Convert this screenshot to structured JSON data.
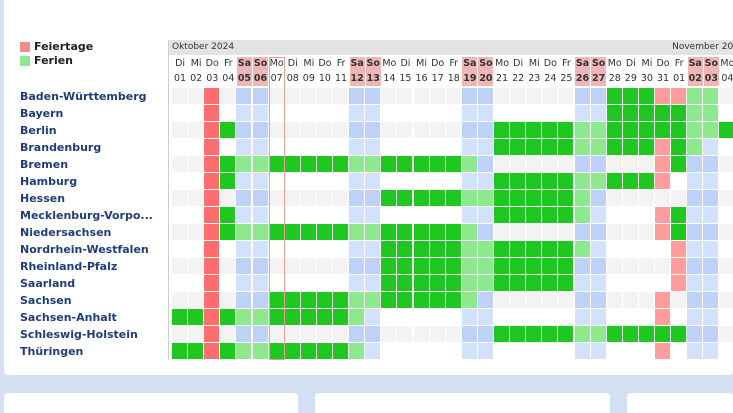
{
  "legend": {
    "feiertage_label": "Feiertage",
    "ferien_label": "Ferien"
  },
  "colors": {
    "feiertag": "#ff6e6e",
    "feiertag_light": "#ff9c9c",
    "ferien": "#1ec81e",
    "ferien_light": "#8ee88e",
    "weekend_header": "#f0b6b6",
    "weekend_col": "#bed2f8",
    "weekend_col_alt": "#d2e2fc",
    "row_alt": "#f3f3f3",
    "row": "#ffffff",
    "month_bar": "#e3e3e3",
    "state_label": "#1f3d7a"
  },
  "months": [
    {
      "label": "Oktober 2024"
    },
    {
      "label": "November 20"
    }
  ],
  "days": [
    {
      "wd": "Di",
      "d": "01",
      "we": false
    },
    {
      "wd": "Mi",
      "d": "02",
      "we": false
    },
    {
      "wd": "Do",
      "d": "03",
      "we": false
    },
    {
      "wd": "Fr",
      "d": "04",
      "we": false
    },
    {
      "wd": "Sa",
      "d": "05",
      "we": true
    },
    {
      "wd": "So",
      "d": "06",
      "we": true
    },
    {
      "wd": "Mo",
      "d": "07",
      "we": false
    },
    {
      "wd": "Di",
      "d": "08",
      "we": false
    },
    {
      "wd": "Mi",
      "d": "09",
      "we": false
    },
    {
      "wd": "Do",
      "d": "10",
      "we": false
    },
    {
      "wd": "Fr",
      "d": "11",
      "we": false
    },
    {
      "wd": "Sa",
      "d": "12",
      "we": true
    },
    {
      "wd": "So",
      "d": "13",
      "we": true
    },
    {
      "wd": "Mo",
      "d": "14",
      "we": false
    },
    {
      "wd": "Di",
      "d": "15",
      "we": false
    },
    {
      "wd": "Mi",
      "d": "16",
      "we": false
    },
    {
      "wd": "Do",
      "d": "17",
      "we": false
    },
    {
      "wd": "Fr",
      "d": "18",
      "we": false
    },
    {
      "wd": "Sa",
      "d": "19",
      "we": true
    },
    {
      "wd": "So",
      "d": "20",
      "we": true
    },
    {
      "wd": "Mo",
      "d": "21",
      "we": false
    },
    {
      "wd": "Di",
      "d": "22",
      "we": false
    },
    {
      "wd": "Mi",
      "d": "23",
      "we": false
    },
    {
      "wd": "Do",
      "d": "24",
      "we": false
    },
    {
      "wd": "Fr",
      "d": "25",
      "we": false
    },
    {
      "wd": "Sa",
      "d": "26",
      "we": true
    },
    {
      "wd": "So",
      "d": "27",
      "we": true
    },
    {
      "wd": "Mo",
      "d": "28",
      "we": false
    },
    {
      "wd": "Di",
      "d": "29",
      "we": false
    },
    {
      "wd": "Mi",
      "d": "30",
      "we": false
    },
    {
      "wd": "Do",
      "d": "31",
      "we": false
    },
    {
      "wd": "Fr",
      "d": "01",
      "we": false
    },
    {
      "wd": "Sa",
      "d": "02",
      "we": true
    },
    {
      "wd": "So",
      "d": "03",
      "we": true
    },
    {
      "wd": "Mo",
      "d": "04",
      "we": false
    }
  ],
  "today_index": 6,
  "states": [
    {
      "name": "Baden-Württemberg",
      "holidays": [
        2,
        30,
        31
      ],
      "ferien": [
        [
          27,
          33
        ]
      ]
    },
    {
      "name": "Bayern",
      "holidays": [
        2
      ],
      "ferien": [
        [
          27,
          33
        ]
      ]
    },
    {
      "name": "Berlin",
      "holidays": [
        2
      ],
      "ferien": [
        [
          3,
          3
        ],
        [
          20,
          34
        ]
      ]
    },
    {
      "name": "Brandenburg",
      "holidays": [
        2,
        30
      ],
      "ferien": [
        [
          20,
          32
        ]
      ]
    },
    {
      "name": "Bremen",
      "holidays": [
        2,
        30
      ],
      "ferien": [
        [
          3,
          18
        ],
        [
          31,
          31
        ]
      ]
    },
    {
      "name": "Hamburg",
      "holidays": [
        2,
        30
      ],
      "ferien": [
        [
          3,
          3
        ],
        [
          20,
          29
        ]
      ]
    },
    {
      "name": "Hessen",
      "holidays": [
        2
      ],
      "ferien": [
        [
          13,
          25
        ]
      ]
    },
    {
      "name": "Mecklenburg-Vorpo...",
      "holidays": [
        2,
        30
      ],
      "ferien": [
        [
          3,
          3
        ],
        [
          20,
          25
        ],
        [
          31,
          31
        ]
      ]
    },
    {
      "name": "Niedersachsen",
      "holidays": [
        2,
        30
      ],
      "ferien": [
        [
          3,
          18
        ],
        [
          31,
          31
        ]
      ]
    },
    {
      "name": "Nordrhein-Westfalen",
      "holidays": [
        2,
        31
      ],
      "ferien": [
        [
          13,
          25
        ]
      ]
    },
    {
      "name": "Rheinland-Pfalz",
      "holidays": [
        2,
        31
      ],
      "ferien": [
        [
          13,
          24
        ]
      ]
    },
    {
      "name": "Saarland",
      "holidays": [
        2,
        31
      ],
      "ferien": [
        [
          13,
          24
        ]
      ]
    },
    {
      "name": "Sachsen",
      "holidays": [
        2,
        30
      ],
      "ferien": [
        [
          6,
          18
        ]
      ]
    },
    {
      "name": "Sachsen-Anhalt",
      "holidays": [
        2,
        30
      ],
      "ferien": [
        [
          0,
          11
        ]
      ]
    },
    {
      "name": "Schleswig-Holstein",
      "holidays": [
        2
      ],
      "ferien": [
        [
          20,
          31
        ]
      ]
    },
    {
      "name": "Thüringen",
      "holidays": [
        2,
        30
      ],
      "ferien": [
        [
          0,
          11
        ]
      ]
    }
  ]
}
